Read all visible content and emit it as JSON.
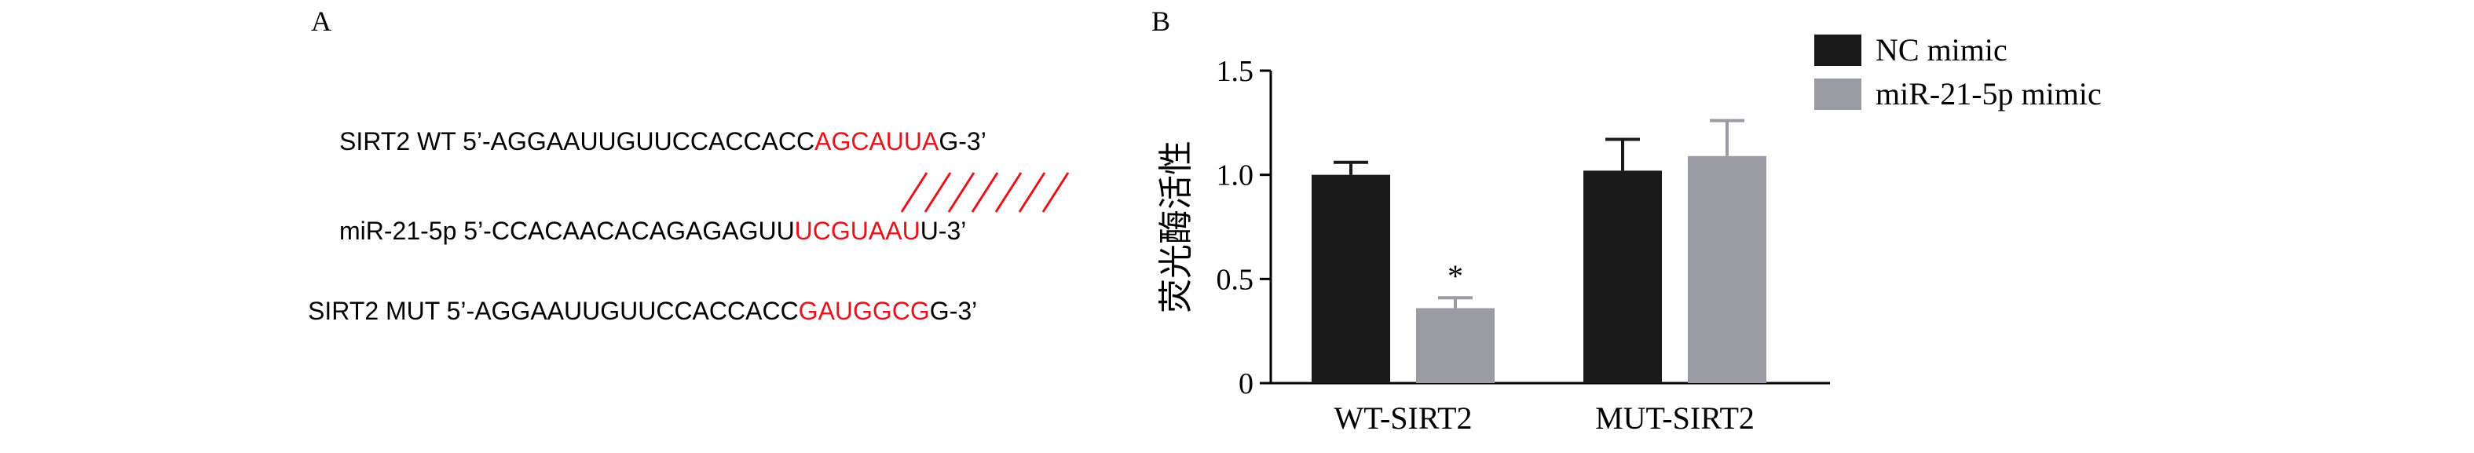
{
  "panel_a": {
    "label": "A",
    "sequences": [
      {
        "prefix": "SIRT2 WT 5’-AGGAAUUGUUCCACCACC",
        "highlight": "AGCAUUA",
        "suffix": "G-3’"
      },
      {
        "prefix": "miR-21-5p 5’-CCACAACACAGAGAGUU",
        "highlight": "UCGUAAU",
        "suffix": "U-3’"
      },
      {
        "prefix": "SIRT2 MUT 5’-AGGAAUUGUUCCACCACC",
        "highlight": "GAUGGCG",
        "suffix": "G-3’"
      }
    ],
    "highlight_color": "#e4161d"
  },
  "panel_b": {
    "label": "B"
  },
  "chart_data": {
    "type": "bar",
    "title": "",
    "xlabel": "",
    "ylabel": "荧光酶活性",
    "ylim": [
      0,
      1.5
    ],
    "yticks": [
      "0",
      "0.5",
      "1.0",
      "1.5"
    ],
    "categories": [
      "WT-SIRT2",
      "MUT-SIRT2"
    ],
    "series": [
      {
        "name": "NC mimic",
        "values": [
          1.0,
          1.02
        ],
        "errors": [
          0.06,
          0.15
        ],
        "color": "#1a1a1a"
      },
      {
        "name": "miR-21-5p mimic",
        "values": [
          0.36,
          1.09
        ],
        "errors": [
          0.05,
          0.17
        ],
        "color": "#9b9ba3"
      }
    ],
    "annotations": [
      {
        "text": "*",
        "category": "WT-SIRT2",
        "series": "miR-21-5p mimic"
      }
    ],
    "legend": "top-right"
  }
}
